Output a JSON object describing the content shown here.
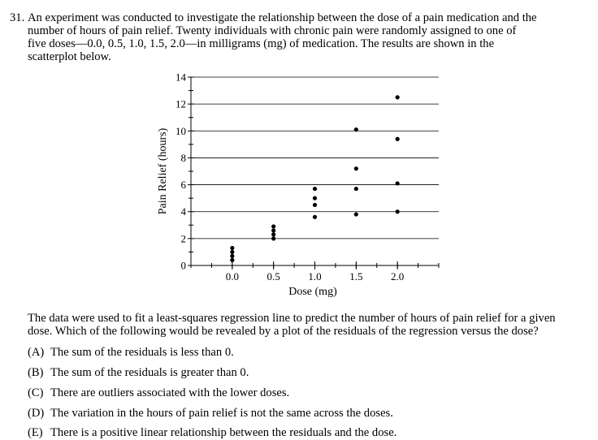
{
  "question": {
    "number": "31.",
    "stem_lines": [
      "An experiment was conducted to investigate the relationship between the dose of a pain medication and the",
      "number of hours of pain relief. Twenty individuals with chronic pain were randomly assigned to one of",
      "five doses—0.0, 0.5, 1.0, 1.5, 2.0—in milligrams (mg) of medication. The results are shown in the",
      "scatterplot below."
    ],
    "followup_lines": [
      "The data were used to fit a least-squares regression line to predict the number of hours of pain relief for a given",
      "dose. Which of the following would be revealed by a plot of the residuals of the regression versus the dose?"
    ],
    "choices": [
      {
        "letter": "(A)",
        "text": "The sum of the residuals is less than 0."
      },
      {
        "letter": "(B)",
        "text": "The sum of the residuals is greater than 0."
      },
      {
        "letter": "(C)",
        "text": "There are outliers associated with the lower doses."
      },
      {
        "letter": "(D)",
        "text": "The variation in the hours of pain relief is not the same across the doses."
      },
      {
        "letter": "(E)",
        "text": "There is a positive linear relationship between the residuals and the dose."
      }
    ]
  },
  "chart_data": {
    "type": "scatter",
    "xlabel": "Dose (mg)",
    "ylabel": "Pain Relief (hours)",
    "xlim": [
      -0.5,
      2.5
    ],
    "ylim": [
      0,
      14
    ],
    "x_ticks": [
      0.0,
      0.5,
      1.0,
      1.5,
      2.0
    ],
    "x_tick_labels": [
      "0.0",
      "0.5",
      "1.0",
      "1.5",
      "2.0"
    ],
    "y_ticks": [
      0,
      2,
      4,
      6,
      8,
      10,
      12,
      14
    ],
    "y_tick_labels": [
      "0",
      "2",
      "4",
      "6",
      "8",
      "10",
      "12",
      "14"
    ],
    "grid": "horizontal",
    "points": [
      {
        "x": 0.0,
        "y": 0.4
      },
      {
        "x": 0.0,
        "y": 0.7
      },
      {
        "x": 0.0,
        "y": 1.0
      },
      {
        "x": 0.0,
        "y": 1.3
      },
      {
        "x": 0.5,
        "y": 2.0
      },
      {
        "x": 0.5,
        "y": 2.3
      },
      {
        "x": 0.5,
        "y": 2.6
      },
      {
        "x": 0.5,
        "y": 2.9
      },
      {
        "x": 1.0,
        "y": 3.6
      },
      {
        "x": 1.0,
        "y": 4.5
      },
      {
        "x": 1.0,
        "y": 5.0
      },
      {
        "x": 1.0,
        "y": 5.7
      },
      {
        "x": 1.5,
        "y": 3.8
      },
      {
        "x": 1.5,
        "y": 5.7
      },
      {
        "x": 1.5,
        "y": 7.2
      },
      {
        "x": 1.5,
        "y": 10.1
      },
      {
        "x": 2.0,
        "y": 4.0
      },
      {
        "x": 2.0,
        "y": 6.1
      },
      {
        "x": 2.0,
        "y": 9.4
      },
      {
        "x": 2.0,
        "y": 12.5
      }
    ]
  }
}
